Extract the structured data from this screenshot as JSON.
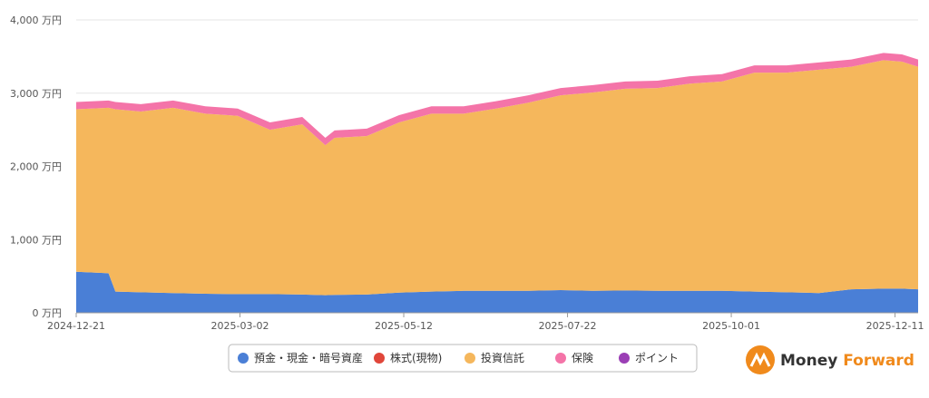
{
  "chart_data": {
    "type": "stacked-area",
    "x": [
      "2024-12-21",
      "2025-01-04",
      "2025-01-07",
      "2025-01-18",
      "2025-02-01",
      "2025-02-15",
      "2025-03-01",
      "2025-03-15",
      "2025-03-29",
      "2025-04-08",
      "2025-04-12",
      "2025-04-26",
      "2025-05-10",
      "2025-05-24",
      "2025-06-07",
      "2025-06-21",
      "2025-07-05",
      "2025-07-19",
      "2025-08-02",
      "2025-08-16",
      "2025-08-30",
      "2025-09-13",
      "2025-09-27",
      "2025-10-11",
      "2025-10-25",
      "2025-11-08",
      "2025-11-22",
      "2025-12-06",
      "2025-12-14",
      "2025-12-21"
    ],
    "xlim": [
      "2024-12-21",
      "2025-12-21"
    ],
    "xticks": [
      "2024-12-21",
      "2025-03-02",
      "2025-05-12",
      "2025-07-22",
      "2025-10-01",
      "2025-12-11"
    ],
    "ylim": [
      0,
      4000
    ],
    "yticks": [
      {
        "value": 0,
        "label": "0 万円"
      },
      {
        "value": 1000,
        "label": "1,000 万円"
      },
      {
        "value": 2000,
        "label": "2,000 万円"
      },
      {
        "value": 3000,
        "label": "3,000 万円"
      },
      {
        "value": 4000,
        "label": "4,000 万円"
      }
    ],
    "grid": true,
    "series": [
      {
        "name": "預金・現金・暗号資産",
        "color": "#4a7fd6",
        "values": [
          560,
          540,
          290,
          280,
          270,
          260,
          255,
          255,
          250,
          240,
          245,
          250,
          275,
          290,
          300,
          300,
          300,
          310,
          300,
          305,
          300,
          300,
          300,
          290,
          280,
          270,
          320,
          330,
          330,
          320
        ]
      },
      {
        "name": "株式(現物)",
        "color": "#e0463a",
        "values": [
          0,
          0,
          0,
          0,
          0,
          0,
          0,
          0,
          0,
          0,
          0,
          0,
          0,
          0,
          0,
          0,
          0,
          0,
          0,
          0,
          0,
          0,
          0,
          0,
          0,
          0,
          0,
          0,
          0,
          0
        ]
      },
      {
        "name": "投資信託",
        "color": "#f5b75c",
        "values": [
          2220,
          2260,
          2490,
          2470,
          2530,
          2460,
          2435,
          2245,
          2325,
          2050,
          2145,
          2165,
          2325,
          2430,
          2420,
          2490,
          2570,
          2660,
          2710,
          2755,
          2770,
          2830,
          2860,
          2990,
          3000,
          3050,
          3040,
          3120,
          3100,
          3040
        ]
      },
      {
        "name": "保険",
        "color": "#f474a8",
        "values": [
          100,
          100,
          100,
          100,
          100,
          100,
          100,
          100,
          100,
          100,
          100,
          100,
          100,
          100,
          100,
          100,
          100,
          100,
          100,
          100,
          100,
          100,
          100,
          100,
          100,
          100,
          100,
          100,
          100,
          100
        ]
      },
      {
        "name": "ポイント",
        "color": "#9b3fb5",
        "values": [
          0,
          0,
          0,
          0,
          0,
          0,
          0,
          0,
          0,
          0,
          0,
          0,
          0,
          0,
          0,
          0,
          0,
          0,
          0,
          0,
          0,
          0,
          0,
          0,
          0,
          0,
          0,
          0,
          0,
          0
        ]
      }
    ]
  },
  "logo": {
    "word1": "Money",
    "word2": "Forward"
  }
}
